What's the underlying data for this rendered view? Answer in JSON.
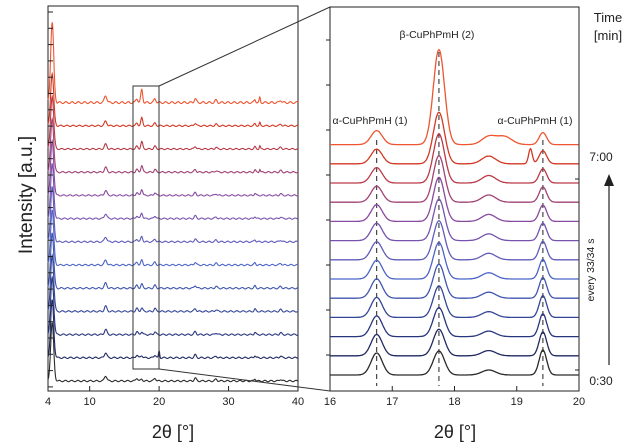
{
  "chart_data": [
    {
      "type": "line",
      "panel": "overview",
      "xlabel": "2θ [°]",
      "ylabel": "Intensity [a.u.]",
      "xlim": [
        4,
        40
      ],
      "xticks": [
        4,
        10,
        20,
        30,
        40
      ],
      "n_patterns": 13,
      "peaks_2theta": [
        4.6,
        12.3,
        16.8,
        17.5,
        19.4,
        20.0,
        25.2,
        28.2,
        33.8,
        34.5,
        37.5
      ],
      "dominant_peak_2theta": 4.6
    },
    {
      "type": "line",
      "panel": "zoom",
      "xlabel": "2θ [°]",
      "xlim": [
        16,
        20
      ],
      "xticks": [
        16,
        17,
        18,
        19,
        20
      ],
      "n_patterns": 13,
      "annotations": [
        {
          "label": "α-CuPhPmH (1)",
          "x": 16.75
        },
        {
          "label": "β-CuPhPmH (2)",
          "x": 17.75
        },
        {
          "label": "α-CuPhPmH (1)",
          "x": 19.42
        }
      ],
      "time_axis": {
        "label_line1": "Time",
        "label_line2": "[min]",
        "start": "0:30",
        "end": "7:00",
        "step_label": "every 33/34 s"
      }
    }
  ],
  "colors": {
    "first": "#2a2a2a",
    "dark_blue": "#1f2a6b",
    "blue": "#4c65c8",
    "purple": "#8a4aa0",
    "red": "#cc3322",
    "last": "#ee5530"
  }
}
